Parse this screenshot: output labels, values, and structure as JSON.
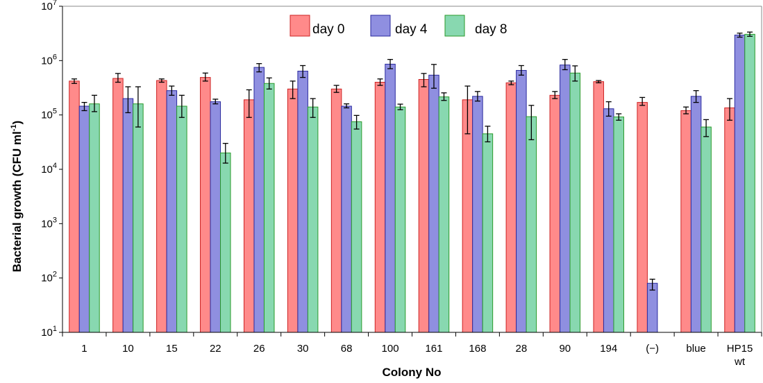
{
  "chart_data": {
    "type": "bar",
    "title": "",
    "xlabel": "Colony No",
    "ylabel": "Bacterial growth (CFU ml",
    "ylabel_sup": "-1",
    "ylabel_close": ")",
    "yscale": "log",
    "ylim": [
      10,
      10000000
    ],
    "ytick_base": "10",
    "ytick_exponents": [
      "1",
      "2",
      "3",
      "4",
      "5",
      "6",
      "7"
    ],
    "legend_position": "top-center",
    "categories": [
      "1",
      "10",
      "15",
      "22",
      "26",
      "30",
      "68",
      "100",
      "161",
      "168",
      "28",
      "90",
      "194",
      "(−)",
      "blue",
      "HP15"
    ],
    "category_sublabels": [
      "",
      "",
      "",
      "",
      "",
      "",
      "",
      "",
      "",
      "",
      "",
      "",
      "",
      "",
      "",
      "wt"
    ],
    "series": [
      {
        "name": "day 0",
        "color": "#ff8a8a",
        "stroke": "#cc2222",
        "values": [
          420000,
          470000,
          430000,
          490000,
          190000,
          300000,
          300000,
          400000,
          450000,
          190000,
          390000,
          230000,
          410000,
          170000,
          120000,
          135000
        ],
        "err_low": [
          380000,
          400000,
          400000,
          420000,
          90000,
          200000,
          260000,
          350000,
          330000,
          45000,
          360000,
          200000,
          390000,
          150000,
          105000,
          80000
        ],
        "err_high": [
          460000,
          580000,
          460000,
          590000,
          290000,
          420000,
          350000,
          460000,
          580000,
          340000,
          420000,
          270000,
          430000,
          210000,
          140000,
          200000
        ]
      },
      {
        "name": "day 4",
        "color": "#8f8fe0",
        "stroke": "#2a2a9e",
        "values": [
          145000,
          200000,
          280000,
          175000,
          750000,
          640000,
          145000,
          860000,
          540000,
          220000,
          660000,
          830000,
          130000,
          80,
          220000,
          2950000
        ],
        "err_low": [
          120000,
          110000,
          230000,
          160000,
          620000,
          490000,
          135000,
          710000,
          310000,
          180000,
          540000,
          680000,
          95000,
          60,
          170000,
          2700000
        ],
        "err_high": [
          170000,
          330000,
          340000,
          195000,
          880000,
          810000,
          160000,
          1050000,
          850000,
          270000,
          810000,
          1050000,
          175000,
          95,
          280000,
          3200000
        ]
      },
      {
        "name": "day 8",
        "color": "#88d8b0",
        "stroke": "#2a9a2a",
        "values": [
          160000,
          160000,
          145000,
          20000,
          380000,
          140000,
          75000,
          140000,
          215000,
          45000,
          93000,
          590000,
          92000,
          null,
          60000,
          3050000
        ],
        "err_low": [
          115000,
          60000,
          90000,
          13000,
          300000,
          90000,
          55000,
          125000,
          185000,
          32000,
          35000,
          420000,
          80000,
          null,
          40000,
          2800000
        ],
        "err_high": [
          230000,
          330000,
          230000,
          30000,
          480000,
          200000,
          98000,
          158000,
          255000,
          62000,
          150000,
          800000,
          105000,
          null,
          82000,
          3350000
        ]
      }
    ]
  }
}
